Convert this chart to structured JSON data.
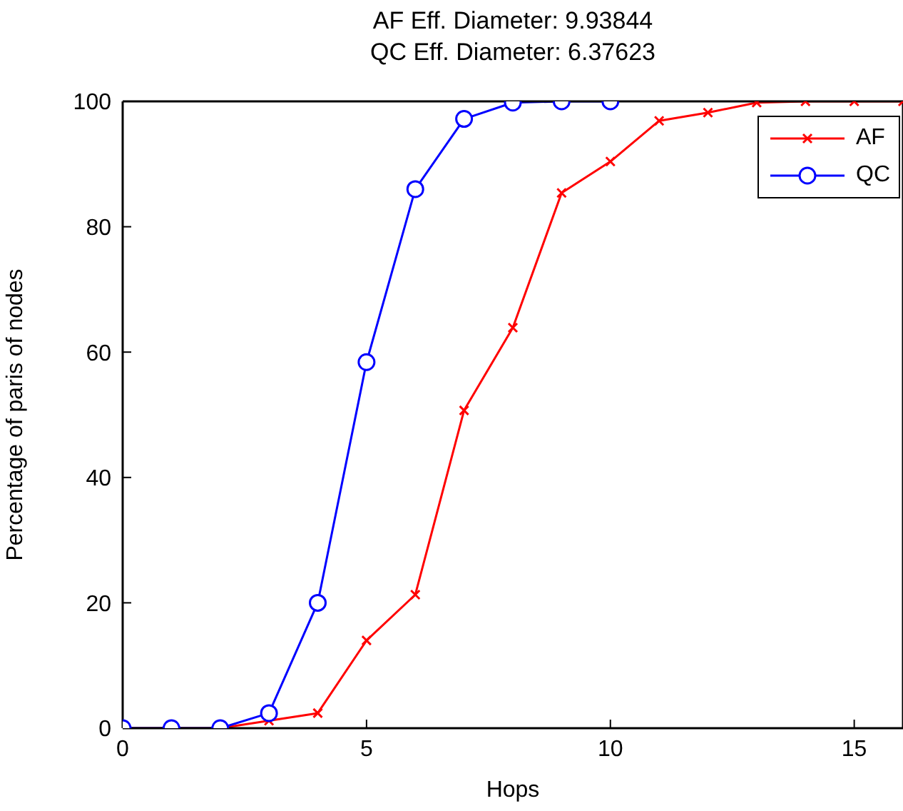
{
  "chart_data": {
    "type": "line",
    "title": "AF Eff. Diameter: 9.93844",
    "subtitle": "QC Eff. Diameter: 6.37623",
    "xlabel": "Hops",
    "ylabel": "Percentage of paris of nodes",
    "series": [
      {
        "name": "AF",
        "color": "#ff0000",
        "marker": "cross",
        "x": [
          0,
          1,
          2,
          3,
          4,
          5,
          6,
          7,
          8,
          9,
          10,
          11,
          12,
          13,
          14,
          15,
          16
        ],
        "values": [
          0,
          0,
          0,
          1.2,
          2.4,
          14.0,
          21.3,
          50.7,
          63.9,
          85.4,
          90.4,
          96.9,
          98.2,
          99.8,
          100,
          100,
          100
        ]
      },
      {
        "name": "QC",
        "color": "#0000ff",
        "marker": "circle",
        "x": [
          0,
          1,
          2,
          3,
          4,
          5,
          6,
          7,
          8,
          9,
          10
        ],
        "values": [
          0,
          0,
          0,
          2.4,
          20.0,
          58.4,
          86.0,
          97.2,
          99.8,
          100,
          100
        ]
      }
    ],
    "xlim": [
      0,
      16
    ],
    "xticks": [
      0,
      5,
      10,
      15
    ],
    "ylim": [
      0,
      100
    ],
    "yticks": [
      0,
      20,
      40,
      60,
      80,
      100
    ],
    "legend": "top right",
    "line_style": "solid"
  }
}
